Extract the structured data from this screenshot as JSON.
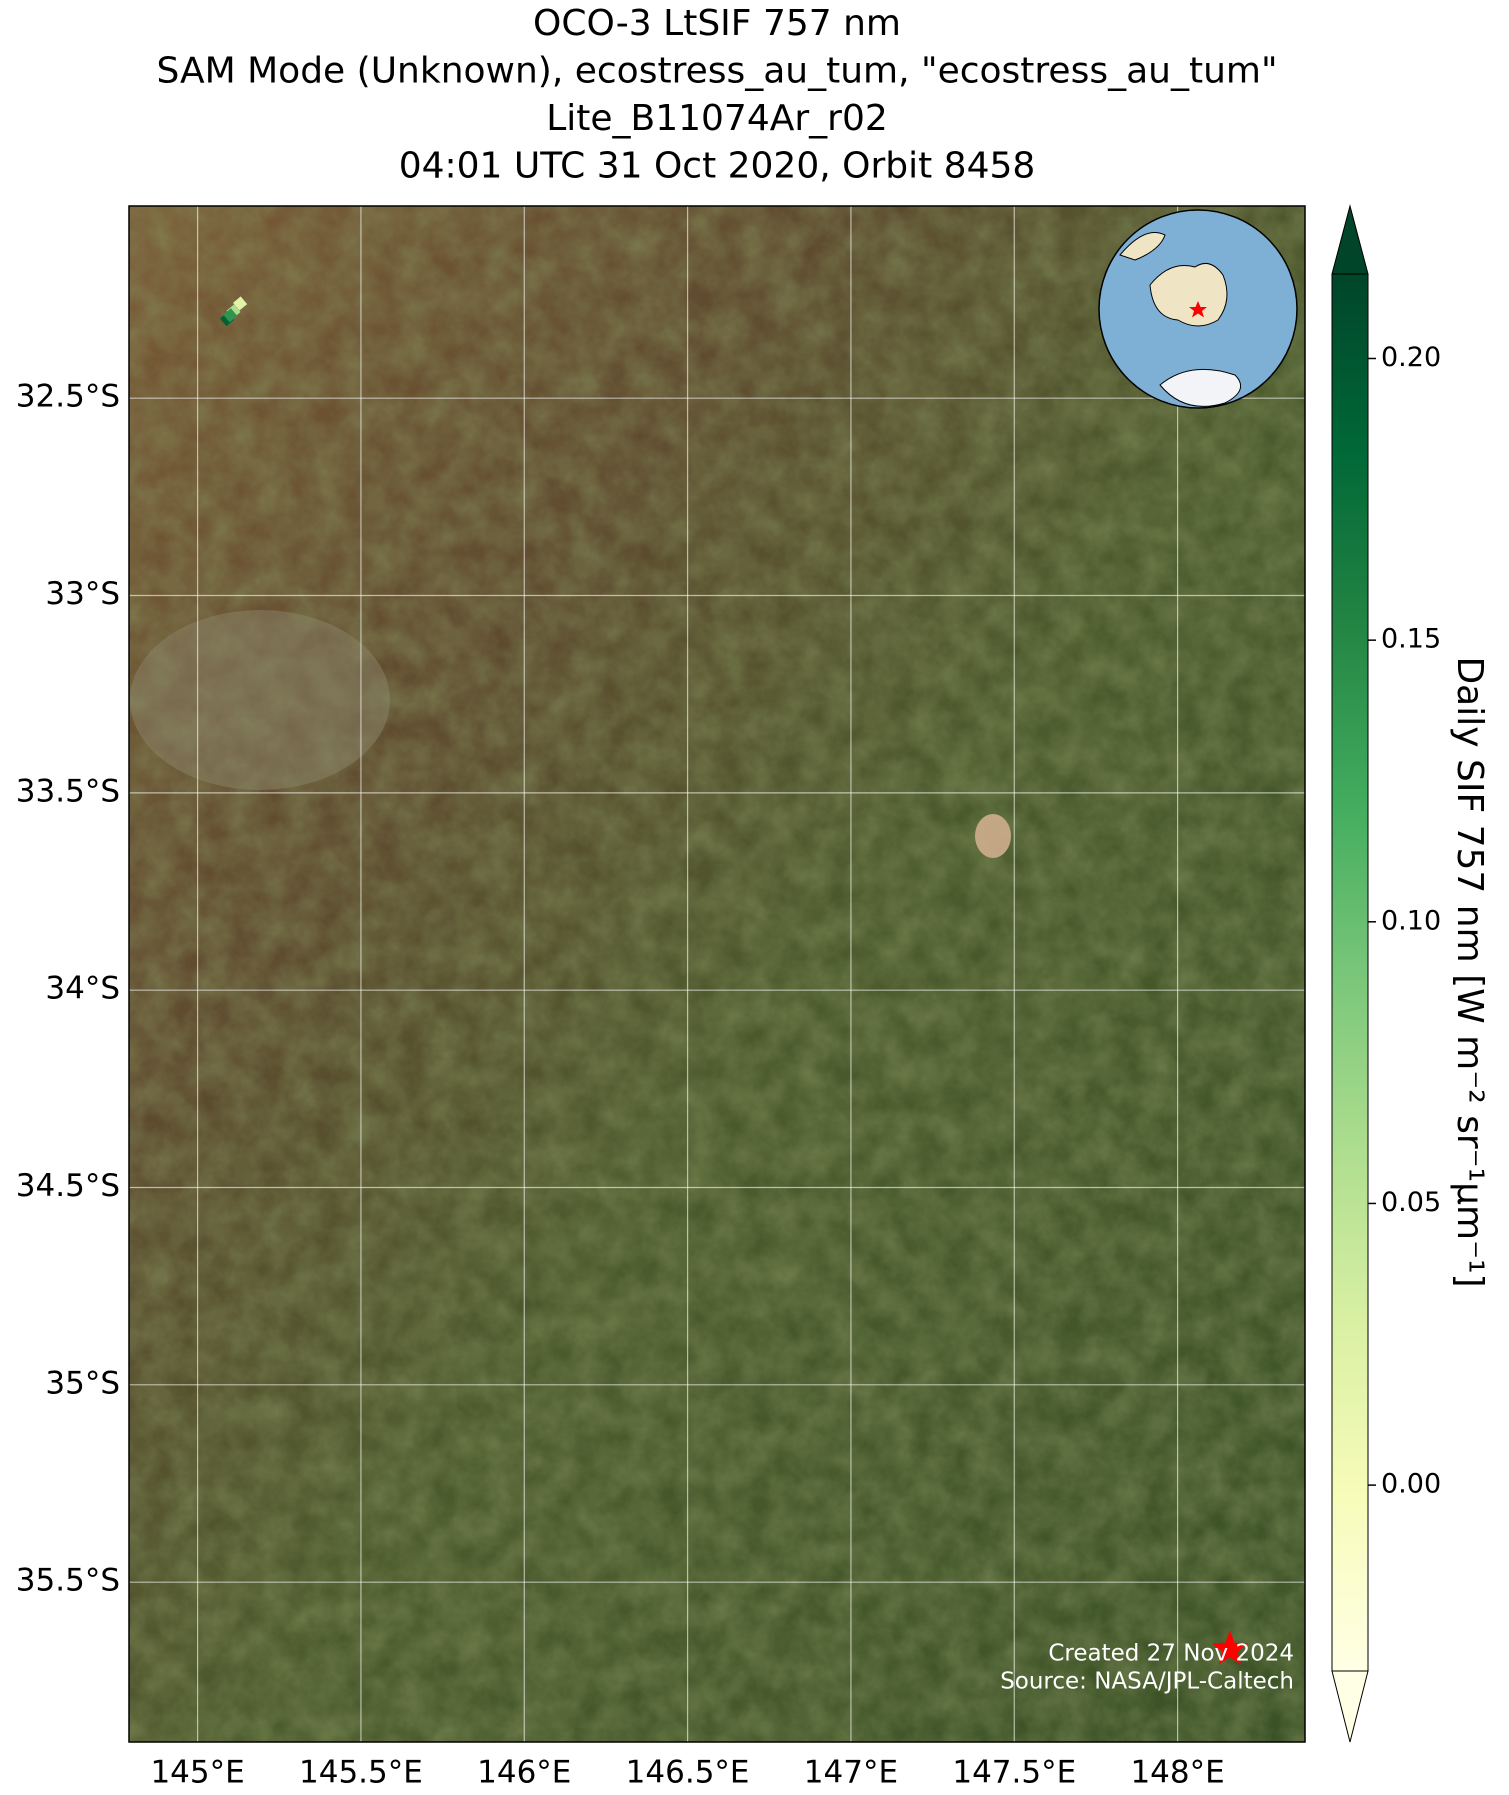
{
  "chart_data": {
    "type": "map",
    "title": [
      "OCO-3 LtSIF 757 nm",
      "SAM Mode (Unknown), ecostress_au_tum, \"ecostress_au_tum\"",
      "Lite_B11074Ar_r02",
      "04:01 UTC 31 Oct 2020, Orbit 8458"
    ],
    "xlim": [
      144.79,
      148.39
    ],
    "ylim": [
      -35.905,
      -32.013
    ],
    "xticks": [
      {
        "value": 145,
        "label": "145°E"
      },
      {
        "value": 145.5,
        "label": "145.5°E"
      },
      {
        "value": 146,
        "label": "146°E"
      },
      {
        "value": 146.5,
        "label": "146.5°E"
      },
      {
        "value": 147,
        "label": "147°E"
      },
      {
        "value": 147.5,
        "label": "147.5°E"
      },
      {
        "value": 148,
        "label": "148°E"
      }
    ],
    "yticks": [
      {
        "value": -32.5,
        "label": "32.5°S"
      },
      {
        "value": -33,
        "label": "33°S"
      },
      {
        "value": -33.5,
        "label": "33.5°S"
      },
      {
        "value": -34,
        "label": "34°S"
      },
      {
        "value": -34.5,
        "label": "34.5°S"
      },
      {
        "value": -35,
        "label": "35°S"
      },
      {
        "value": -35.5,
        "label": "35.5°S"
      }
    ],
    "grid": true,
    "colormap": "YlGn",
    "clim": [
      -0.033,
      0.215
    ],
    "cticks": [
      {
        "value": 0,
        "label": "0.00"
      },
      {
        "value": 0.05,
        "label": "0.05"
      },
      {
        "value": 0.1,
        "label": "0.10"
      },
      {
        "value": 0.15,
        "label": "0.15"
      },
      {
        "value": 0.2,
        "label": "0.20"
      }
    ],
    "colorbar_label": "Daily SIF 757 nm [W m⁻² sr⁻¹μm⁻¹]",
    "lon": [
      145.13,
      145.11,
      145.09,
      145.1
    ],
    "lat": [
      -32.26,
      -32.28,
      -32.3,
      -32.29
    ],
    "values": [
      0.02,
      0.06,
      0.19,
      0.14
    ],
    "site": {
      "lon": 148.16,
      "lat": -35.67,
      "color": "#ff0000"
    },
    "annotations": [
      "Created 27 Nov 2024",
      "Source: NASA/JPL-Caltech"
    ]
  }
}
